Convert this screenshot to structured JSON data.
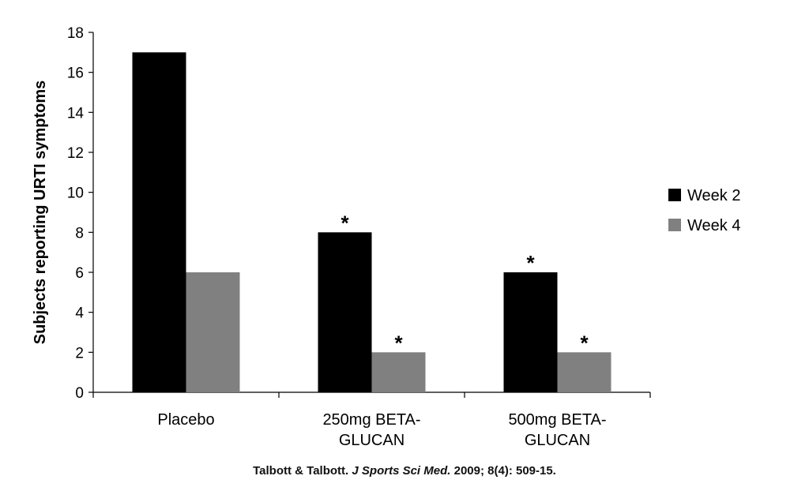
{
  "chart_data": {
    "type": "bar",
    "ylabel": "Subjects reporting URTI symptoms",
    "ylim": [
      0,
      18
    ],
    "yticks": [
      0,
      2,
      4,
      6,
      8,
      10,
      12,
      14,
      16,
      18
    ],
    "categories": [
      [
        "Placebo"
      ],
      [
        "250mg BETA-",
        "GLUCAN"
      ],
      [
        "500mg BETA-",
        "GLUCAN"
      ]
    ],
    "series": [
      {
        "name": "Week 2",
        "color": "#000000",
        "values": [
          17,
          8,
          6
        ],
        "significant": [
          false,
          true,
          true
        ]
      },
      {
        "name": "Week 4",
        "color": "#808080",
        "values": [
          6,
          2,
          2
        ],
        "significant": [
          false,
          true,
          true
        ]
      }
    ],
    "significance_marker": "*",
    "legend": "right",
    "grid": false
  },
  "citation": {
    "authors": "Talbott & Talbott.",
    "journal": "J Sports Sci Med.",
    "details": "2009; 8(4): 509-15."
  }
}
